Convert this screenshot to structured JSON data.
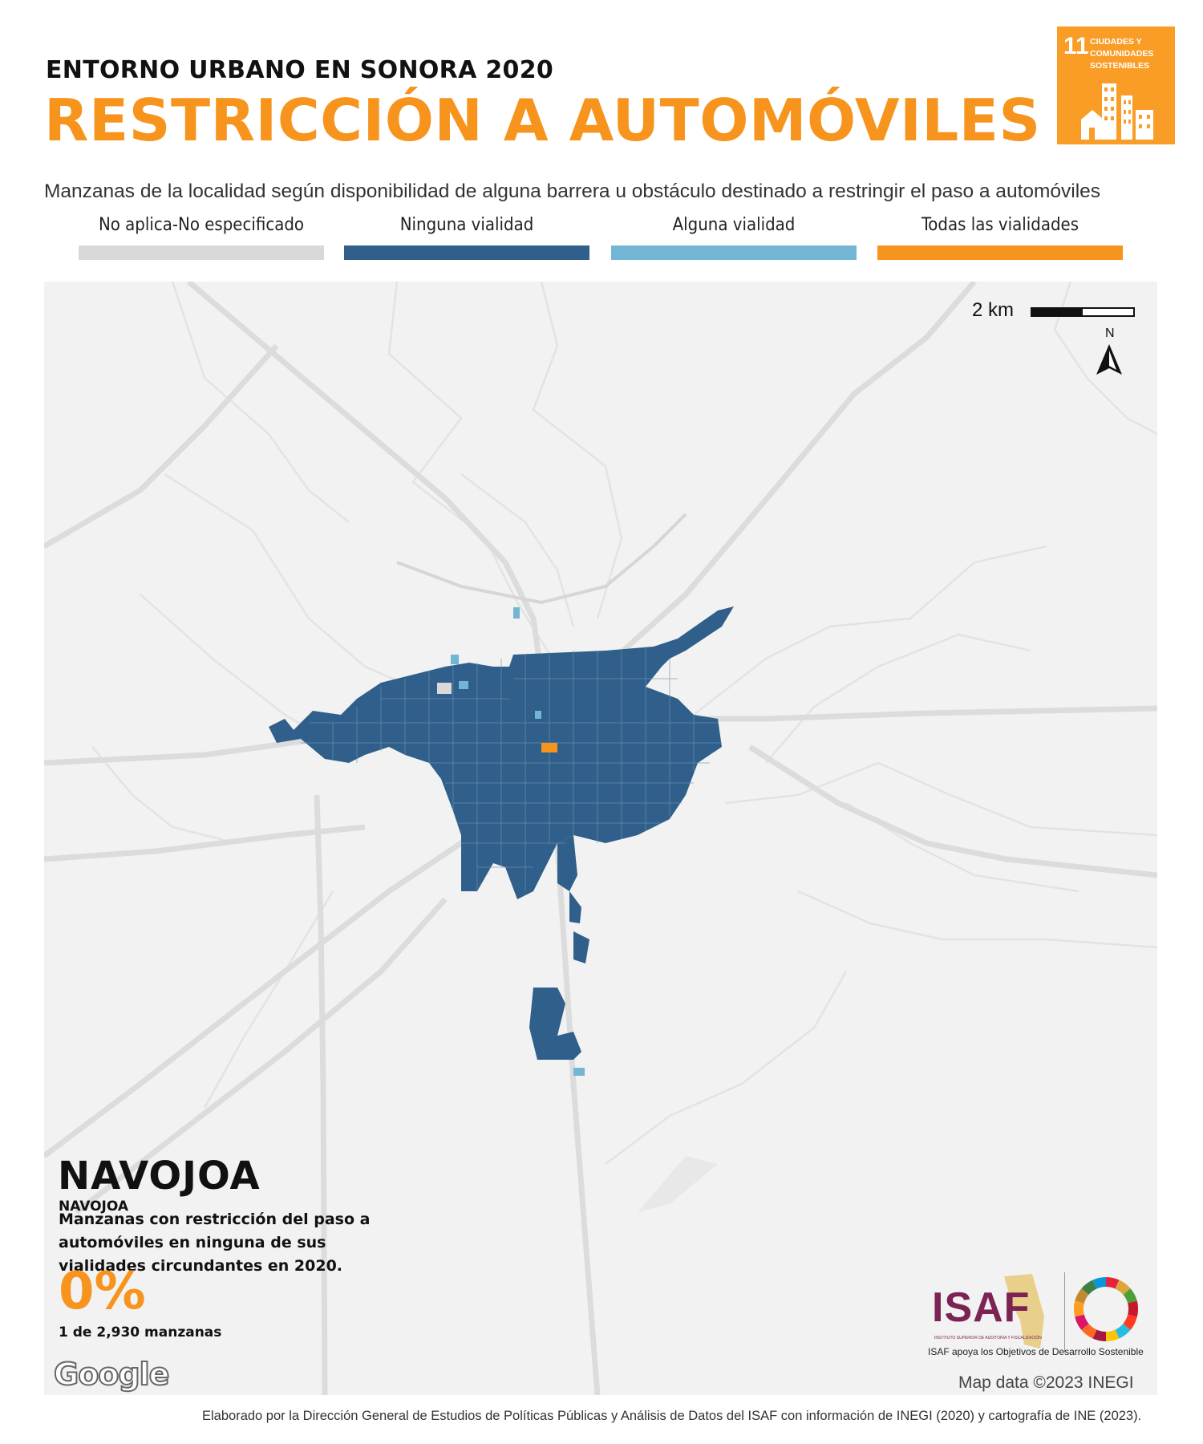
{
  "header": {
    "supertitle": "ENTORNO URBANO EN SONORA 2020",
    "title": "RESTRICCIÓN A AUTOMÓVILES",
    "subtitle": "Manzanas de la localidad según disponibilidad de alguna barrera u obstáculo destinado a restringir el paso a automóviles"
  },
  "sdg_badge": {
    "number": "11",
    "label": "CIUDADES Y COMUNIDADES SOSTENIBLES",
    "color": "#f99d26"
  },
  "legend": [
    {
      "label": "No aplica-No especificado",
      "color": "#d9d9d9"
    },
    {
      "label": "Ninguna vialidad",
      "color": "#2f5f8a"
    },
    {
      "label": "Alguna vialidad",
      "color": "#72b6d4"
    },
    {
      "label": "Todas las vialidades",
      "color": "#f7941d"
    }
  ],
  "map": {
    "scale_label": "2 km",
    "north_label": "N",
    "attribution": "Map data ©2023 INEGI",
    "google_label": "Google"
  },
  "locality": {
    "name": "NAVOJOA",
    "subname": "NAVOJOA",
    "stat_text": "Manzanas con restricción del paso a automóviles en ninguna de sus vialidades circundantes en 2020.",
    "stat_value": "0%",
    "stat_count": "1 de 2,930 manzanas"
  },
  "logos": {
    "isaf_word": "ISAF",
    "isaf_subline": "INSTITUTO SUPERIOR DE AUDITORÍA Y FISCALIZACIÓN",
    "isaf_tagline": "ISAF apoya los Objetivos de Desarrollo Sostenible"
  },
  "footer": {
    "credit": "Elaborado por la Dirección General de Estudios de Políticas Públicas y Análisis de Datos del ISAF con información de INEGI (2020) y cartografía de INE (2023)."
  }
}
